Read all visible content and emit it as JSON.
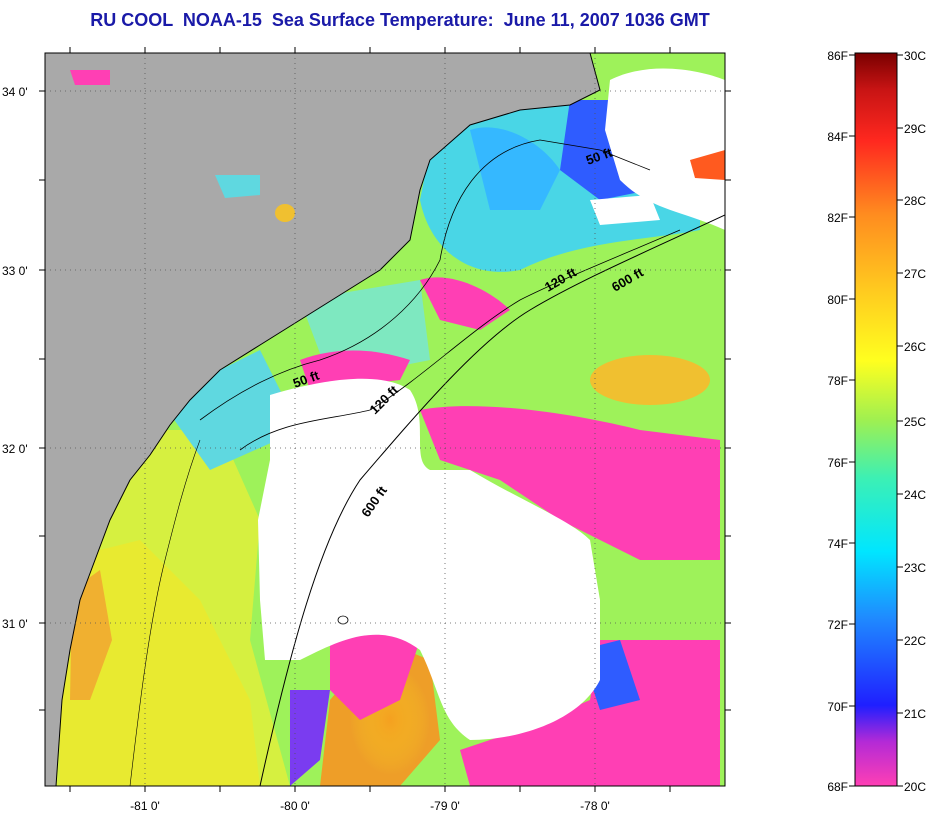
{
  "title": "RU COOL  NOAA-15  Sea Surface Temperature:  June 11, 2007 1036 GMT",
  "map": {
    "lat_labels": [
      "34 0'",
      "33 0'",
      "32 0'",
      "31 0'"
    ],
    "lon_labels": [
      "-81 0'",
      "-80 0'",
      "-79 0'",
      "-78 0'"
    ],
    "contour_labels": [
      "50 ft",
      "120 ft",
      "600 ft",
      "50 ft",
      "120 ft",
      "600 ft"
    ],
    "colors": {
      "land": "#a9a9a9",
      "cloud": "#ffffff",
      "coast": "#000000"
    }
  },
  "colorbar": {
    "f_labels": [
      "86F",
      "84F",
      "82F",
      "80F",
      "78F",
      "76F",
      "74F",
      "72F",
      "70F",
      "68F"
    ],
    "c_labels": [
      "30C",
      "29C",
      "28C",
      "27C",
      "26C",
      "25C",
      "24C",
      "23C",
      "22C",
      "21C",
      "20C"
    ],
    "stops": [
      "#ff3fb4",
      "#8b1fd6",
      "#1f1fff",
      "#1f8bff",
      "#00e6ff",
      "#3cf0b4",
      "#a0f050",
      "#ffff1f",
      "#ffc81f",
      "#ff8c1f",
      "#ff3c1f",
      "#c81f1f",
      "#7a0000"
    ]
  }
}
